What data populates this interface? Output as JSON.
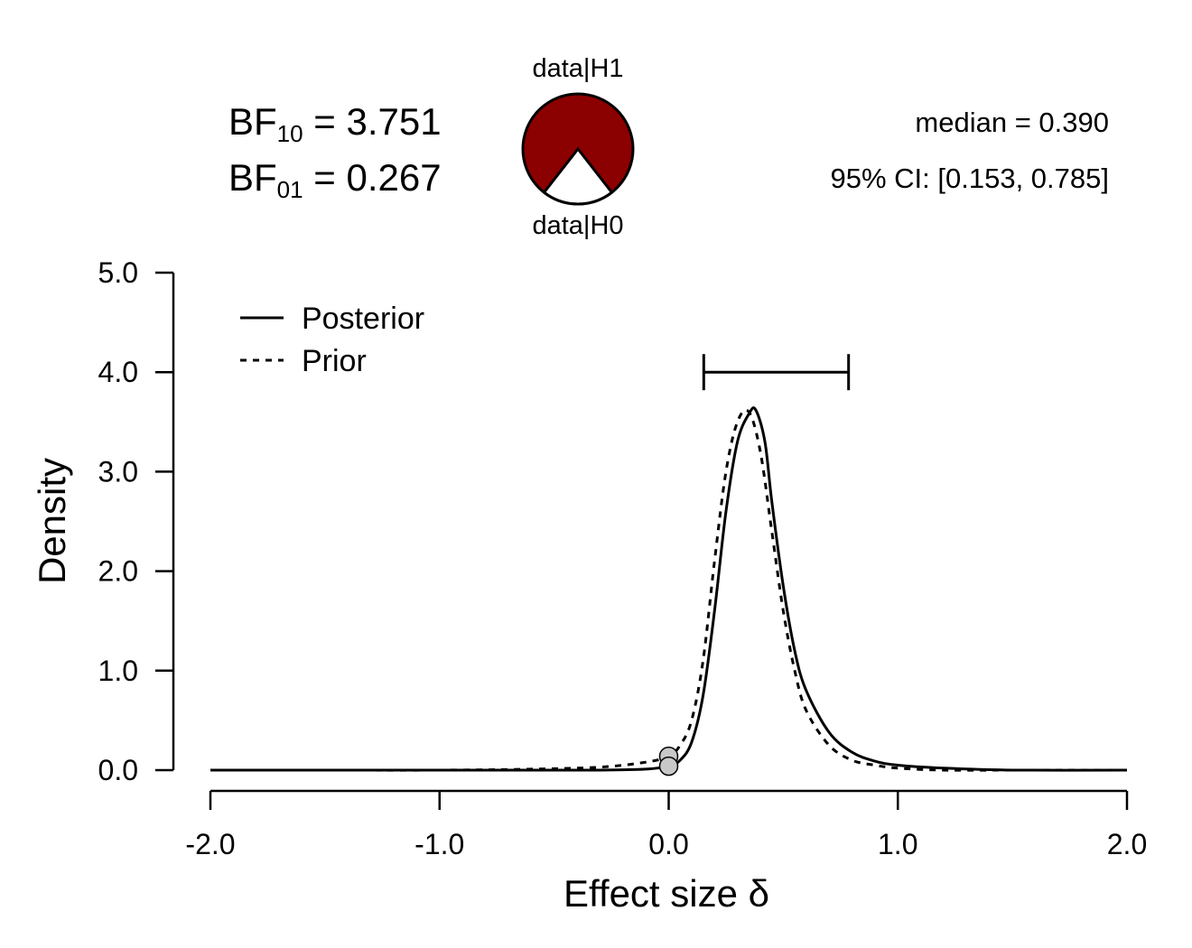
{
  "header": {
    "bf10_label": "BF",
    "bf10_sub": "10",
    "bf10_value": "= 3.751",
    "bf01_label": "BF",
    "bf01_sub": "01",
    "bf01_value": "= 0.267",
    "pie_top_label": "data|H1",
    "pie_bottom_label": "data|H0",
    "median_text": "median = 0.390",
    "ci_text": "95% CI: [0.153, 0.785]"
  },
  "pie": {
    "h1_color": "#8b0000",
    "h0_color": "#ffffff",
    "bf10": 3.751,
    "h1_fraction": 0.7895
  },
  "chart_data": {
    "type": "line",
    "xlabel": "Effect size δ",
    "ylabel": "Density",
    "xlim": [
      -2.0,
      2.0
    ],
    "ylim": [
      0.0,
      5.0
    ],
    "x_ticks": [
      "-2.0",
      "-1.0",
      "0.0",
      "1.0",
      "2.0"
    ],
    "y_ticks": [
      "0.0",
      "1.0",
      "2.0",
      "3.0",
      "4.0",
      "5.0"
    ],
    "legend_position": "top-left",
    "legend": [
      "Posterior",
      "Prior"
    ],
    "series": [
      {
        "name": "Posterior",
        "style": "solid",
        "x": [
          -2.0,
          -1.5,
          -1.0,
          -0.6,
          -0.3,
          -0.1,
          0.0,
          0.05,
          0.1,
          0.15,
          0.2,
          0.25,
          0.3,
          0.35,
          0.38,
          0.42,
          0.45,
          0.5,
          0.55,
          0.6,
          0.7,
          0.8,
          0.9,
          1.0,
          1.2,
          1.5,
          2.0
        ],
        "y": [
          0.0,
          0.0,
          0.0,
          0.0,
          0.0,
          0.01,
          0.04,
          0.1,
          0.28,
          0.75,
          1.6,
          2.6,
          3.3,
          3.58,
          3.62,
          3.3,
          2.7,
          1.85,
          1.2,
          0.8,
          0.38,
          0.18,
          0.09,
          0.05,
          0.02,
          0.0,
          0.0
        ]
      },
      {
        "name": "Prior",
        "style": "dotted",
        "x": [
          -2.0,
          -1.5,
          -1.0,
          -0.6,
          -0.3,
          -0.1,
          0.0,
          0.05,
          0.1,
          0.15,
          0.2,
          0.25,
          0.3,
          0.35,
          0.4,
          0.45,
          0.5,
          0.55,
          0.6,
          0.7,
          0.8,
          0.9,
          1.0,
          1.2,
          1.5,
          2.0
        ],
        "y": [
          0.0,
          0.0,
          0.0,
          0.01,
          0.03,
          0.08,
          0.14,
          0.25,
          0.5,
          1.1,
          2.1,
          3.0,
          3.5,
          3.6,
          3.2,
          2.4,
          1.6,
          1.0,
          0.6,
          0.25,
          0.1,
          0.05,
          0.02,
          0.0,
          0.0,
          0.0
        ]
      }
    ],
    "ci_interval": [
      0.153,
      0.785
    ],
    "ci_bar_y": 4.0,
    "points_at_zero": [
      {
        "series": "Prior",
        "x": 0.0,
        "y": 0.14
      },
      {
        "series": "Posterior",
        "x": 0.0,
        "y": 0.04
      }
    ]
  }
}
